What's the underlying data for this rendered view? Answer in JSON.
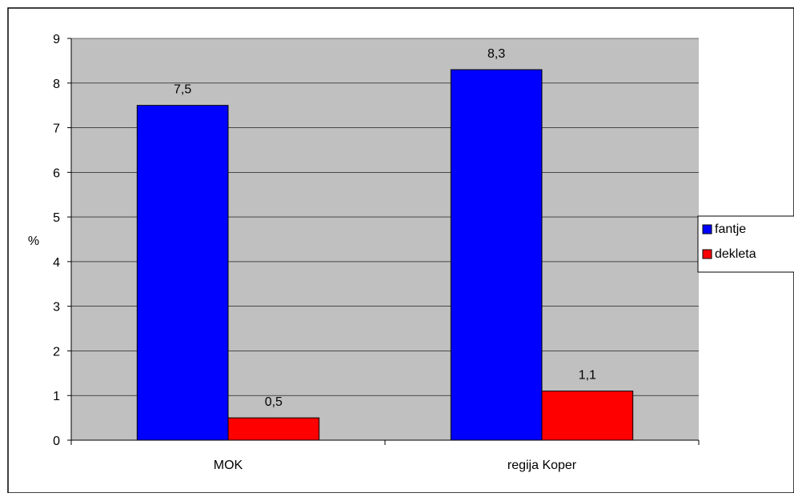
{
  "chart_data": {
    "type": "bar",
    "categories": [
      "MOK",
      "regija Koper"
    ],
    "series": [
      {
        "name": "fantje",
        "values": [
          7.5,
          8.3
        ],
        "labels": [
          "7,5",
          "8,3"
        ],
        "color": "#0000FF"
      },
      {
        "name": "dekleta",
        "values": [
          0.5,
          1.1
        ],
        "labels": [
          "0,5",
          "1,1"
        ],
        "color": "#FF0000"
      }
    ],
    "title": "",
    "xlabel": "",
    "ylabel": "%",
    "ylim": [
      0,
      9
    ],
    "yticks": [
      "0",
      "1",
      "2",
      "3",
      "4",
      "5",
      "6",
      "7",
      "8",
      "9"
    ],
    "grid": true,
    "legend_position": "right",
    "plot_background": "#C0C0C0"
  }
}
